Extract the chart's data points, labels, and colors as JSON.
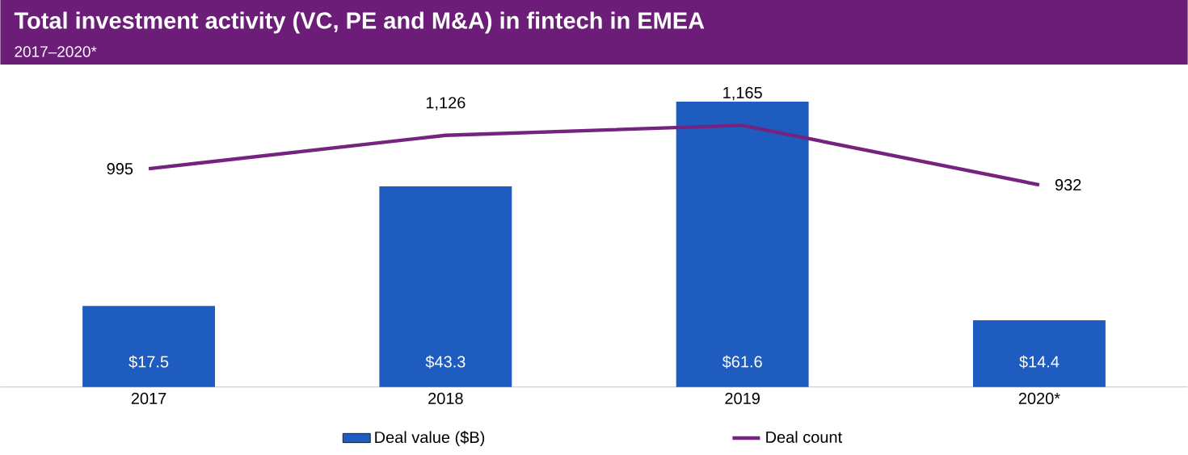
{
  "chart_data": {
    "type": "bar",
    "title": "Total investment activity (VC, PE and M&A) in fintech in EMEA",
    "subtitle": "2017–2020*",
    "categories": [
      "2017",
      "2018",
      "2019",
      "2020*"
    ],
    "series": [
      {
        "name": "Deal value ($B)",
        "color": "#1f5cbf",
        "values": [
          17.5,
          43.3,
          61.6,
          14.4
        ],
        "value_labels": [
          "$17.5",
          "$43.3",
          "$61.6",
          "$14.4"
        ]
      },
      {
        "name": "Deal count",
        "type": "line",
        "axis": "y2",
        "color": "#74237e",
        "values": [
          995,
          1126,
          1165,
          932
        ],
        "value_labels": [
          "995",
          "1,126",
          "1,165",
          "932"
        ],
        "marker": "none"
      }
    ],
    "legend": "bottom"
  }
}
